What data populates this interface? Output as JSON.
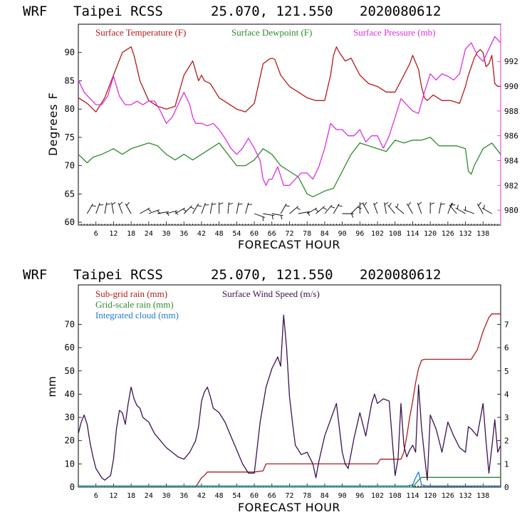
{
  "chart_data": [
    {
      "type": "line",
      "header": {
        "model": "WRF",
        "station": "Taipei RCSS",
        "coords": "25.070, 121.550",
        "run": "2020080612"
      },
      "xlabel": "FORECAST HOUR",
      "ylabel": "Degrees F",
      "xlim": [
        0,
        144
      ],
      "ylim": [
        59.5,
        95
      ],
      "y2lim": [
        978.8,
        995
      ],
      "x_ticks": [
        6,
        12,
        18,
        24,
        30,
        36,
        42,
        48,
        54,
        60,
        66,
        72,
        78,
        84,
        90,
        96,
        102,
        108,
        114,
        120,
        126,
        132,
        138
      ],
      "y_ticks": [
        60,
        65,
        70,
        75,
        80,
        85,
        90
      ],
      "y2_ticks": [
        980,
        982,
        984,
        986,
        988,
        990,
        992
      ],
      "legend": [
        {
          "label": "Surface Temperature (F)",
          "color": "#b41a1a"
        },
        {
          "label": "Surface Dewpoint (F)",
          "color": "#2e8b2e"
        },
        {
          "label": "Surface Pressure (mb)",
          "color": "#dd2fdd"
        }
      ],
      "series": [
        {
          "name": "Surface Temperature (F)",
          "axis": "left",
          "color": "#b41a1a",
          "x": [
            0,
            3,
            6,
            9,
            12,
            15,
            18,
            19,
            21,
            24,
            27,
            30,
            33,
            36,
            39,
            41,
            42,
            43,
            45,
            48,
            51,
            54,
            57,
            60,
            63,
            65,
            66,
            67,
            69,
            72,
            75,
            78,
            81,
            84,
            86,
            87,
            88,
            89,
            91,
            93,
            96,
            99,
            102,
            105,
            108,
            110,
            111,
            112,
            113,
            114,
            116,
            117,
            118,
            119,
            121,
            124,
            127,
            130,
            132,
            133,
            135,
            136,
            137,
            138,
            139,
            140,
            141,
            142,
            143,
            144
          ],
          "values": [
            82,
            81,
            79.5,
            82,
            86,
            90,
            91,
            89.5,
            85,
            81.5,
            80.5,
            80,
            80.5,
            86,
            88.5,
            85,
            86,
            85,
            84.5,
            82,
            81,
            80,
            79.5,
            81,
            88,
            88.8,
            89,
            88.8,
            86,
            84,
            83,
            82,
            81.5,
            81.5,
            86,
            89.5,
            91,
            90,
            88.5,
            89,
            86,
            84.5,
            84,
            83,
            83,
            85,
            86,
            87,
            88,
            89.5,
            87,
            84,
            82,
            81.5,
            82.5,
            81.5,
            81.5,
            81,
            84,
            86,
            89,
            90,
            90.5,
            90,
            87.5,
            88,
            89.5,
            84.5,
            84,
            84
          ]
        },
        {
          "name": "Surface Dewpoint (F)",
          "axis": "left",
          "color": "#2e8b2e",
          "x": [
            0,
            2,
            3,
            5,
            8,
            12,
            15,
            18,
            21,
            24,
            27,
            30,
            33,
            36,
            39,
            42,
            45,
            48,
            51,
            54,
            57,
            60,
            63,
            66,
            69,
            72,
            75,
            78,
            80,
            82,
            84,
            87,
            90,
            93,
            96,
            99,
            102,
            105,
            108,
            111,
            114,
            117,
            120,
            123,
            126,
            129,
            132,
            133,
            134,
            135,
            138,
            141,
            144
          ],
          "values": [
            72,
            71,
            70.5,
            71.5,
            72,
            73,
            72,
            73,
            73.5,
            74,
            73.5,
            72,
            71,
            72,
            71,
            72,
            73,
            74,
            72,
            70,
            70,
            71,
            73,
            72,
            70,
            69,
            68,
            65,
            64.5,
            65,
            65.5,
            66,
            69,
            72,
            74,
            73.5,
            73,
            72.5,
            74.5,
            74,
            74.5,
            74.5,
            75,
            73.5,
            73.5,
            73.5,
            73,
            69,
            68.5,
            70,
            73,
            74,
            72
          ]
        },
        {
          "name": "Surface Pressure (mb)",
          "axis": "right",
          "color": "#dd2fdd",
          "x": [
            0,
            2,
            4,
            6,
            8,
            10,
            12,
            14,
            16,
            18,
            20,
            22,
            24,
            26,
            28,
            30,
            32,
            34,
            36,
            38,
            39,
            40,
            42,
            44,
            46,
            48,
            50,
            52,
            54,
            56,
            58,
            60,
            62,
            63,
            64,
            65,
            66,
            68,
            70,
            72,
            74,
            76,
            78,
            80,
            82,
            84,
            86,
            88,
            90,
            92,
            94,
            96,
            98,
            100,
            102,
            104,
            106,
            108,
            110,
            112,
            114,
            116,
            118,
            120,
            122,
            124,
            126,
            128,
            130,
            132,
            134,
            136,
            138,
            140,
            142,
            144
          ],
          "values": [
            990.5,
            989.5,
            989,
            988.5,
            988.5,
            989.2,
            990.8,
            989.2,
            988.5,
            988.5,
            988.8,
            988.5,
            988.8,
            988.8,
            988,
            987,
            987.5,
            988.5,
            989.5,
            988.5,
            987.5,
            987,
            987,
            986.8,
            987,
            986.5,
            985.8,
            985,
            984.5,
            985,
            985.8,
            985,
            984,
            982.5,
            982,
            982.5,
            982.5,
            983.5,
            982,
            982,
            982.5,
            983,
            983,
            982.5,
            983.5,
            985,
            987,
            986.5,
            986.5,
            986,
            986,
            986.5,
            985.5,
            986,
            986,
            985,
            986,
            987.5,
            989,
            988.5,
            988,
            987.8,
            989.5,
            991,
            990.5,
            991,
            990.8,
            990.5,
            991,
            993,
            993.5,
            992.5,
            992,
            993,
            994,
            993.5
          ]
        }
      ],
      "wind_barbs_row": true
    },
    {
      "type": "line",
      "header": {
        "model": "WRF",
        "station": "Taipei RCSS",
        "coords": "25.070, 121.550",
        "run": "2020080612"
      },
      "xlabel": "FORECAST HOUR",
      "ylabel": "mm",
      "xlim": [
        0,
        144
      ],
      "ylim": [
        0,
        87
      ],
      "y2lim": [
        0,
        8.7
      ],
      "x_ticks": [
        6,
        12,
        18,
        24,
        30,
        36,
        42,
        48,
        54,
        60,
        66,
        72,
        78,
        84,
        90,
        96,
        102,
        108,
        114,
        120,
        126,
        132,
        138
      ],
      "y_ticks": [
        0,
        10,
        20,
        30,
        40,
        50,
        60,
        70
      ],
      "y2_ticks": [
        0,
        1,
        2,
        3,
        4,
        5,
        6,
        7
      ],
      "legend": [
        {
          "label": "Sub-grid rain (mm)",
          "color": "#b41a1a"
        },
        {
          "label": "Surface Wind Speed (m/s)",
          "color": "#3b1250"
        },
        {
          "label": "Grid-scale rain (mm)",
          "color": "#2e8b2e"
        },
        {
          "label": "Integrated cloud (mm)",
          "color": "#1e7bd4"
        }
      ],
      "series": [
        {
          "name": "Sub-grid rain (mm)",
          "axis": "left",
          "color": "#b41a1a",
          "x": [
            0,
            40,
            41,
            42,
            43,
            44,
            60,
            63,
            64,
            102,
            103,
            104,
            110,
            111,
            112,
            113,
            114,
            115,
            116,
            117,
            118,
            132,
            133,
            134,
            135,
            136,
            137,
            138,
            139,
            140,
            141,
            144
          ],
          "values": [
            0,
            0,
            2,
            4,
            5,
            6.5,
            6.5,
            7,
            10,
            10,
            12,
            12,
            12,
            15,
            22,
            30,
            37,
            45,
            51,
            54.5,
            55,
            55,
            55,
            55,
            57,
            59,
            63,
            67,
            70,
            73,
            74.5,
            74.5
          ]
        },
        {
          "name": "Grid-scale rain (mm)",
          "axis": "left",
          "color": "#2e8b2e",
          "x": [
            0,
            114,
            115,
            116,
            117,
            144
          ],
          "values": [
            0,
            0,
            1.5,
            3,
            4.2,
            4.2
          ]
        },
        {
          "name": "Integrated cloud (mm)",
          "axis": "left",
          "color": "#1e7bd4",
          "x": [
            0,
            112,
            114,
            115,
            116,
            117,
            119,
            144
          ],
          "values": [
            0.5,
            0.5,
            1,
            4,
            6.5,
            1,
            0.5,
            0.5
          ]
        },
        {
          "name": "Surface Wind Speed (m/s)",
          "axis": "right",
          "color": "#3b1250",
          "x": [
            0,
            1,
            2,
            3,
            4,
            5,
            6,
            7,
            8,
            9,
            10,
            11,
            12,
            13,
            14,
            15,
            16,
            17,
            18,
            19,
            20,
            21,
            22,
            24,
            26,
            28,
            30,
            32,
            34,
            36,
            38,
            40,
            41,
            42,
            43,
            44,
            45,
            46,
            48,
            50,
            52,
            54,
            56,
            58,
            60,
            62,
            64,
            66,
            68,
            69,
            70,
            71,
            72,
            73,
            74,
            76,
            78,
            80,
            81,
            82,
            84,
            86,
            88,
            90,
            91,
            92,
            94,
            96,
            98,
            100,
            101,
            102,
            104,
            106,
            108,
            109,
            110,
            111,
            112,
            113,
            114,
            115,
            116,
            117,
            118,
            119,
            120,
            122,
            124,
            126,
            128,
            130,
            132,
            133,
            134,
            136,
            138,
            139,
            140,
            141,
            142,
            143,
            144
          ],
          "values": [
            2.3,
            2.8,
            3.1,
            2.7,
            1.9,
            1.3,
            0.8,
            0.6,
            0.4,
            0.3,
            0.4,
            0.5,
            1.2,
            2.5,
            3.3,
            3.2,
            2.7,
            3.6,
            4.3,
            3.8,
            3.5,
            3.4,
            3.0,
            2.8,
            2.3,
            2.0,
            1.7,
            1.5,
            1.3,
            1.2,
            1.5,
            2.0,
            2.6,
            3.7,
            4.1,
            4.3,
            3.9,
            3.4,
            3.2,
            2.8,
            2.2,
            1.6,
            1.0,
            0.6,
            0.6,
            2.8,
            4.3,
            5.1,
            5.6,
            5.2,
            7.4,
            6.0,
            3.9,
            2.8,
            1.8,
            1.4,
            1.5,
            1.0,
            0.4,
            1.1,
            2.2,
            2.9,
            3.6,
            1.5,
            1.0,
            0.8,
            2.1,
            3.2,
            2.2,
            3.6,
            4.0,
            3.6,
            3.8,
            3.7,
            0.5,
            1.2,
            3.6,
            1.8,
            1.3,
            1.6,
            1.8,
            1.5,
            4.4,
            2.6,
            1.4,
            0.3,
            3.1,
            2.5,
            1.5,
            2.8,
            2.2,
            1.7,
            1.5,
            2.6,
            2.5,
            2.2,
            3.6,
            2.0,
            0.6,
            1.7,
            2.9,
            1.5,
            1.8
          ]
        }
      ]
    }
  ]
}
